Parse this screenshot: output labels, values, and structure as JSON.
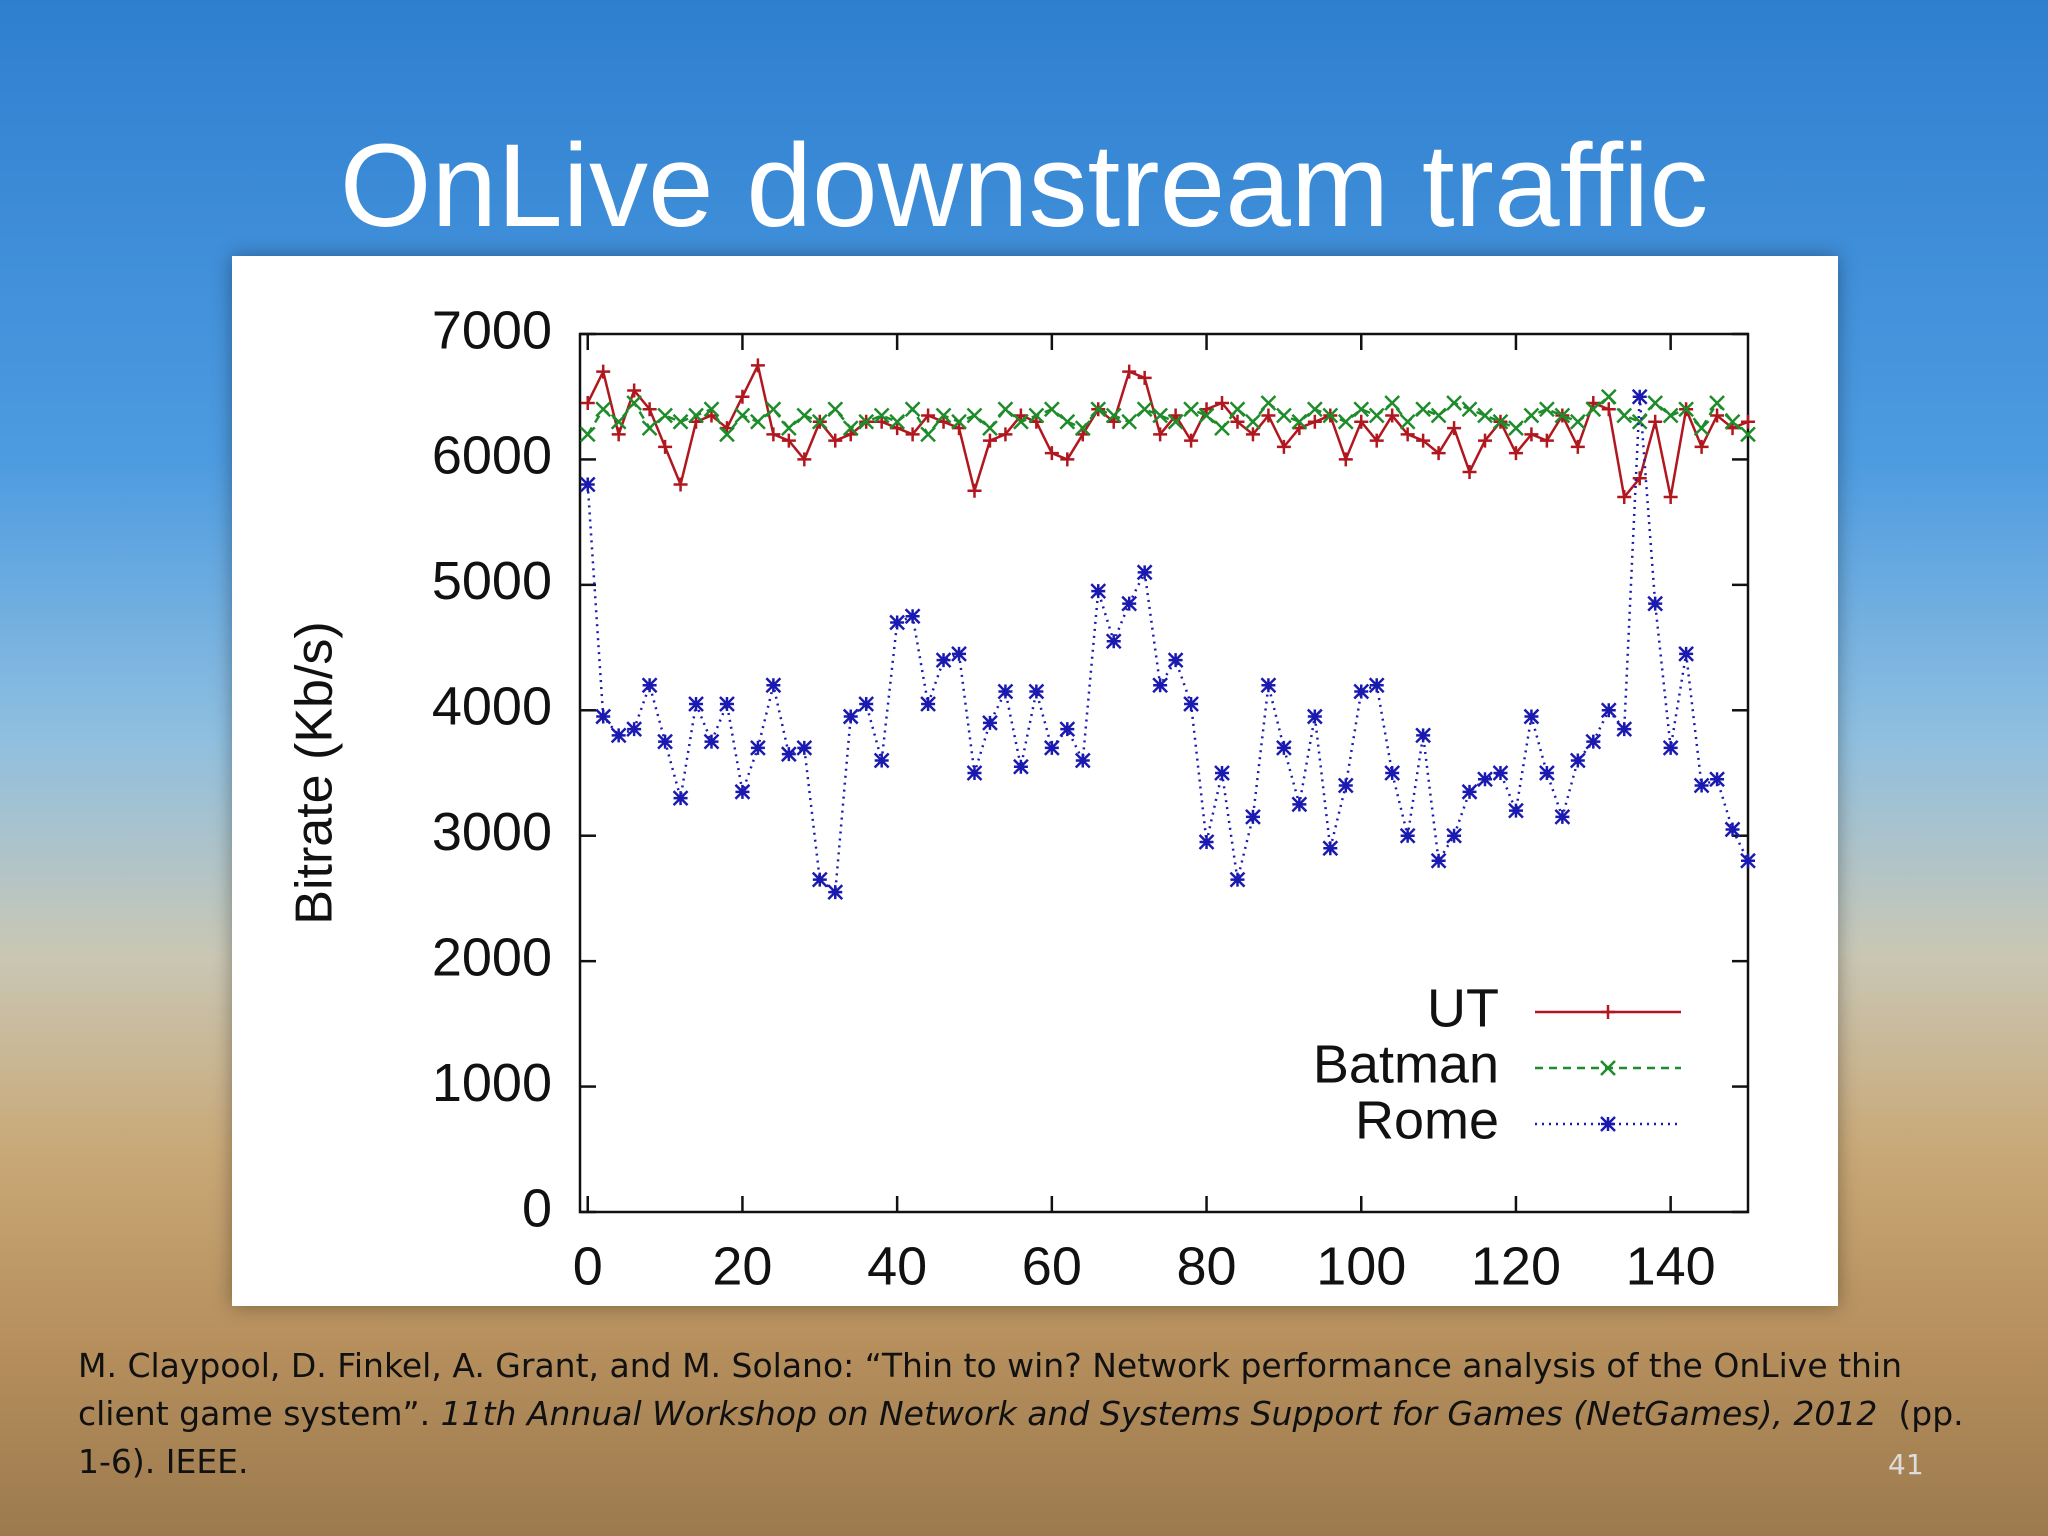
{
  "slide": {
    "title": "OnLive downstream traffic",
    "citation": {
      "text": "M. Claypool, D. Finkel, A. Grant, and M. Solano: “Thin to win? Network performance analysis of the OnLive thin client game system”.",
      "venue": "11th Annual Workshop on Network and Systems Support for Games (NetGames), 2012",
      "pages": "(pp. 1-6). IEEE."
    },
    "page_number": "41"
  },
  "chart_data": {
    "type": "line",
    "y_label": "Bitrate (Kb/s)",
    "x": [
      0,
      2,
      4,
      6,
      8,
      10,
      12,
      14,
      16,
      18,
      20,
      22,
      24,
      26,
      28,
      30,
      32,
      34,
      36,
      38,
      40,
      42,
      44,
      46,
      48,
      50,
      52,
      54,
      56,
      58,
      60,
      62,
      64,
      66,
      68,
      70,
      72,
      74,
      76,
      78,
      80,
      82,
      84,
      86,
      88,
      90,
      92,
      94,
      96,
      98,
      100,
      102,
      104,
      106,
      108,
      110,
      112,
      114,
      116,
      118,
      120,
      122,
      124,
      126,
      128,
      130,
      132,
      134,
      136,
      138,
      140,
      142,
      144,
      146,
      148,
      150
    ],
    "series": [
      {
        "name": "UT",
        "color": "#b0171f",
        "dash": "solid",
        "marker": "plus",
        "values": [
          6450,
          6700,
          6200,
          6550,
          6400,
          6100,
          5800,
          6300,
          6350,
          6250,
          6500,
          6750,
          6200,
          6150,
          6000,
          6300,
          6150,
          6200,
          6300,
          6300,
          6250,
          6200,
          6350,
          6300,
          6250,
          5750,
          6150,
          6200,
          6350,
          6300,
          6050,
          6000,
          6200,
          6400,
          6300,
          6700,
          6650,
          6200,
          6350,
          6150,
          6400,
          6450,
          6300,
          6200,
          6350,
          6100,
          6250,
          6300,
          6350,
          6000,
          6300,
          6150,
          6350,
          6200,
          6150,
          6050,
          6250,
          5900,
          6150,
          6300,
          6050,
          6200,
          6150,
          6350,
          6100,
          6450,
          6400,
          5700,
          5850,
          6300,
          5700,
          6400,
          6100,
          6350,
          6250,
          6300
        ]
      },
      {
        "name": "Batman",
        "color": "#1e8c2a",
        "dash": "dashed",
        "marker": "cross",
        "values": [
          6200,
          6400,
          6300,
          6450,
          6250,
          6350,
          6300,
          6350,
          6400,
          6200,
          6350,
          6300,
          6400,
          6250,
          6350,
          6300,
          6400,
          6250,
          6300,
          6350,
          6300,
          6400,
          6200,
          6350,
          6300,
          6350,
          6250,
          6400,
          6300,
          6350,
          6400,
          6300,
          6250,
          6400,
          6350,
          6300,
          6400,
          6350,
          6300,
          6400,
          6350,
          6250,
          6400,
          6300,
          6450,
          6350,
          6300,
          6400,
          6350,
          6300,
          6400,
          6350,
          6450,
          6300,
          6400,
          6350,
          6450,
          6400,
          6350,
          6300,
          6250,
          6350,
          6400,
          6350,
          6300,
          6400,
          6500,
          6350,
          6300,
          6450,
          6350,
          6400,
          6250,
          6450,
          6300,
          6200
        ]
      },
      {
        "name": "Rome",
        "color": "#1a1ab0",
        "dash": "dotted",
        "marker": "star",
        "values": [
          5800,
          3950,
          3800,
          3850,
          4200,
          3750,
          3300,
          4050,
          3750,
          4050,
          3350,
          3700,
          4200,
          3650,
          3700,
          2650,
          2550,
          3950,
          4050,
          3600,
          4700,
          4750,
          4050,
          4400,
          4450,
          3500,
          3900,
          4150,
          3550,
          4150,
          3700,
          3850,
          3600,
          4950,
          4550,
          4850,
          5100,
          4200,
          4400,
          4050,
          2950,
          3500,
          2650,
          3150,
          4200,
          3700,
          3250,
          3950,
          2900,
          3400,
          4150,
          4200,
          3500,
          3000,
          3800,
          2800,
          3000,
          3350,
          3450,
          3500,
          3200,
          3950,
          3500,
          3150,
          3600,
          3750,
          4000,
          3850,
          6500,
          4850,
          3700,
          4450,
          3400,
          3450,
          3050,
          2800
        ]
      }
    ],
    "xlim": [
      -1,
      150
    ],
    "xticks": [
      0,
      20,
      40,
      60,
      80,
      100,
      120,
      140
    ],
    "ylim": [
      0,
      7000
    ],
    "yticks": [
      0,
      1000,
      2000,
      3000,
      4000,
      5000,
      6000,
      7000
    ],
    "grid": false,
    "legend": "lower right"
  }
}
